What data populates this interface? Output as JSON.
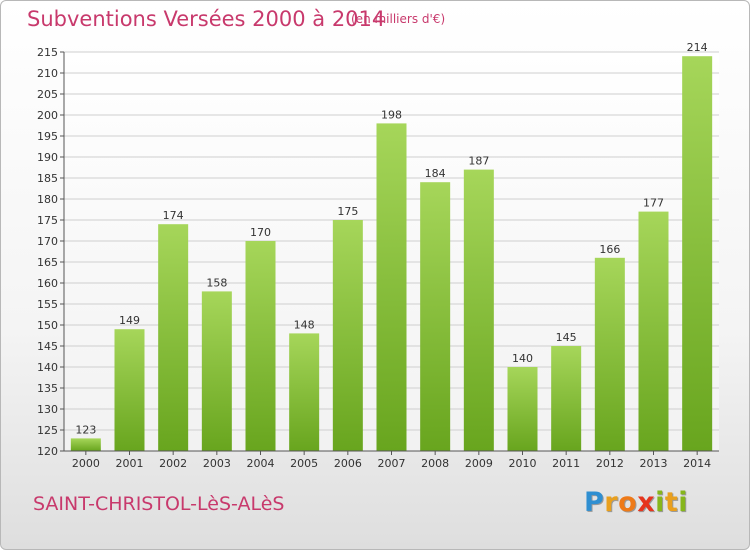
{
  "header": {
    "title": "Subventions Versées 2000 à 2014",
    "subtitle": "(en milliers d'€)"
  },
  "footer": {
    "commune": "SAINT-CHRISTOL-LèS-ALèS",
    "logo": {
      "letters": [
        "P",
        "r",
        "o",
        "x",
        "i",
        "t",
        "i"
      ],
      "colors": [
        "#2f8fd1",
        "#e9a01e",
        "#ee7a18",
        "#e6351d",
        "#86b61b",
        "#e9a01e",
        "#86b61b"
      ]
    }
  },
  "colors": {
    "bar_top": "#a6d65a",
    "bar_bottom": "#68a51e",
    "title": "#c8396c",
    "grid": "#cfcfcf",
    "axis_text": "#333333"
  },
  "chart_data": {
    "type": "bar",
    "title": "Subventions Versées 2000 à 2014",
    "subtitle": "(en milliers d'€)",
    "xlabel": "",
    "ylabel": "",
    "categories": [
      "2000",
      "2001",
      "2002",
      "2003",
      "2004",
      "2005",
      "2006",
      "2007",
      "2008",
      "2009",
      "2010",
      "2011",
      "2012",
      "2013",
      "2014"
    ],
    "values": [
      123,
      149,
      174,
      158,
      170,
      148,
      175,
      198,
      184,
      187,
      140,
      145,
      166,
      177,
      214
    ],
    "ylim": [
      120,
      215
    ],
    "yticks": [
      120,
      125,
      130,
      135,
      140,
      145,
      150,
      155,
      160,
      165,
      170,
      175,
      180,
      185,
      190,
      195,
      200,
      205,
      210,
      215
    ],
    "grid": true,
    "legend": "none"
  }
}
